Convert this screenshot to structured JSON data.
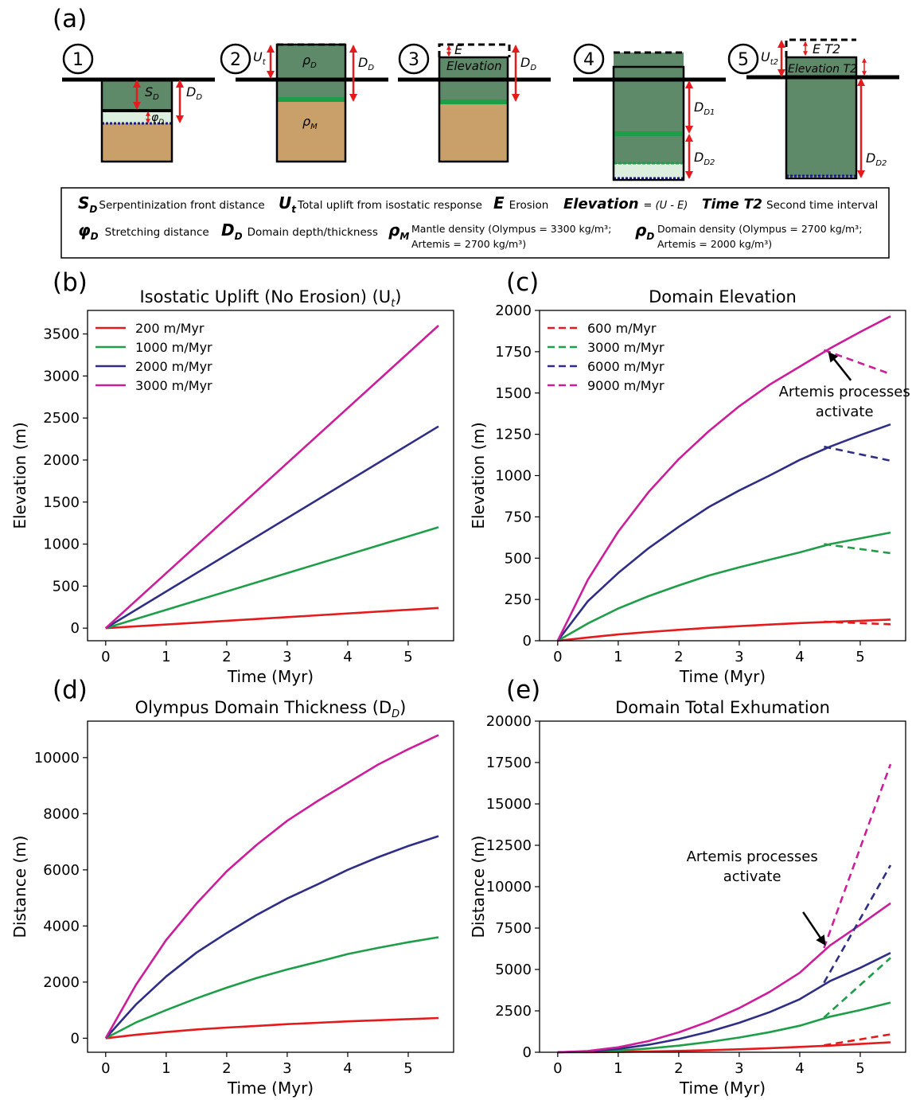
{
  "figure": {
    "panel_labels": [
      "(a)",
      "(b)",
      "(c)",
      "(d)",
      "(e)"
    ],
    "schematic": {
      "steps": [
        "1",
        "2",
        "3",
        "4",
        "5"
      ],
      "labels": {
        "sd": "S",
        "sd_sub": "D",
        "dd": "D",
        "dd_sub": "D",
        "phi": "φ",
        "phi_sub": "D",
        "ut": "U",
        "ut_sub": "t",
        "rho_d": "ρ",
        "rho_d_sub": "D",
        "rho_m": "ρ",
        "rho_m_sub": "M",
        "e": "E",
        "elevation": "Elevation",
        "dd1": "D",
        "dd1_sub": "D1",
        "dd2": "D",
        "dd2_sub": "D2",
        "ut2": "U",
        "ut2_sub": "t2",
        "et2": "E T2",
        "elevation_t2": "Elevation T2"
      },
      "legend_rows": [
        [
          {
            "sym": "S",
            "sub": "D",
            "text": "Serpentinization front distance"
          },
          {
            "sym": "U",
            "sub": "t",
            "text": "Total uplift from isostatic response"
          },
          {
            "sym": "E",
            "sub": "",
            "text": "Erosion"
          },
          {
            "sym": "Elevation",
            "sub": "",
            "text": "= (U - E)"
          },
          {
            "sym": "Time T2",
            "sub": "",
            "text": "Second time interval"
          }
        ],
        [
          {
            "sym": "φ",
            "sub": "D",
            "text": "Stretching distance"
          },
          {
            "sym": "D",
            "sub": "D",
            "text": "Domain depth/thickness"
          },
          {
            "sym": "ρ",
            "sub": "M",
            "text": "Mantle density (Olympus = 3300 kg/m³;",
            "text2": "Artemis = 2700 kg/m³)"
          },
          {
            "sym": "ρ",
            "sub": "D",
            "text": "Domain density (Olympus = 2700 kg/m³;",
            "text2": "Artemis = 2000 kg/m³)"
          }
        ]
      ]
    }
  },
  "colors": {
    "red": "#e41a1c",
    "green": "#1e9e48",
    "navy": "#2e2e86",
    "magenta": "#cc1e9b",
    "domain": "#5f8a6a",
    "mantle": "#c9a06a",
    "stretch": "#dcefdf"
  },
  "chart_data": [
    {
      "panel": "(b)",
      "type": "line",
      "title": "Isostatic Uplift (No Erosion) (U",
      "title_sub": "t",
      "title_end": ")",
      "xlabel": "Time (Myr)",
      "ylabel": "Elevation (m)",
      "xlim": [
        -0.3,
        5.75
      ],
      "ylim": [
        -150,
        3780
      ],
      "xticks": [
        0,
        1,
        2,
        3,
        4,
        5
      ],
      "yticks": [
        0,
        500,
        1000,
        1500,
        2000,
        2500,
        3000,
        3500
      ],
      "legend": "top-left",
      "series": [
        {
          "name": "200 m/Myr",
          "color": "#e41a1c",
          "dash": false,
          "x": [
            0,
            5.5
          ],
          "y": [
            0,
            240
          ]
        },
        {
          "name": "1000 m/Myr",
          "color": "#1e9e48",
          "dash": false,
          "x": [
            0,
            5.5
          ],
          "y": [
            0,
            1200
          ]
        },
        {
          "name": "2000 m/Myr",
          "color": "#2e2e86",
          "dash": false,
          "x": [
            0,
            5.5
          ],
          "y": [
            0,
            2400
          ]
        },
        {
          "name": "3000 m/Myr",
          "color": "#cc1e9b",
          "dash": false,
          "x": [
            0,
            5.5
          ],
          "y": [
            0,
            3600
          ]
        }
      ]
    },
    {
      "panel": "(c)",
      "type": "line",
      "title": "Domain Elevation",
      "xlabel": "Time (Myr)",
      "ylabel": "Elevation (m)",
      "xlim": [
        -0.3,
        5.75
      ],
      "ylim": [
        0,
        2000
      ],
      "xticks": [
        0,
        1,
        2,
        3,
        4,
        5
      ],
      "yticks": [
        0,
        250,
        500,
        750,
        1000,
        1250,
        1500,
        1750,
        2000
      ],
      "legend": "top-left",
      "annotation": {
        "text": [
          "Artemis processes",
          "activate"
        ],
        "x": 4.45,
        "y": 1760
      },
      "series": [
        {
          "name": "",
          "color": "#e41a1c",
          "dash": false,
          "x": [
            0,
            0.5,
            1,
            1.5,
            2,
            2.5,
            3,
            3.5,
            4,
            4.5,
            5,
            5.5
          ],
          "y": [
            0,
            20,
            38,
            53,
            66,
            78,
            88,
            98,
            107,
            114,
            121,
            128
          ]
        },
        {
          "name": "",
          "color": "#1e9e48",
          "dash": false,
          "x": [
            0,
            0.5,
            1,
            1.5,
            2,
            2.5,
            3,
            3.5,
            4,
            4.5,
            5,
            5.5
          ],
          "y": [
            0,
            105,
            195,
            270,
            335,
            395,
            445,
            490,
            535,
            585,
            620,
            655
          ]
        },
        {
          "name": "",
          "color": "#2e2e86",
          "dash": false,
          "x": [
            0,
            0.5,
            1,
            1.5,
            2,
            2.5,
            3,
            3.5,
            4,
            4.5,
            5,
            5.5
          ],
          "y": [
            0,
            240,
            410,
            560,
            690,
            810,
            910,
            1000,
            1095,
            1175,
            1245,
            1310
          ]
        },
        {
          "name": "",
          "color": "#cc1e9b",
          "dash": false,
          "x": [
            0,
            0.5,
            1,
            1.5,
            2,
            2.5,
            3,
            3.5,
            4,
            4.5,
            5,
            5.5
          ],
          "y": [
            0,
            370,
            660,
            900,
            1100,
            1270,
            1420,
            1550,
            1660,
            1770,
            1870,
            1965
          ]
        },
        {
          "name": "600 m/Myr",
          "color": "#e41a1c",
          "dash": true,
          "x": [
            4.4,
            5.5
          ],
          "y": [
            115,
            100
          ]
        },
        {
          "name": "3000 m/Myr",
          "color": "#1e9e48",
          "dash": true,
          "x": [
            4.4,
            5.5
          ],
          "y": [
            585,
            530
          ]
        },
        {
          "name": "6000 m/Myr",
          "color": "#2e2e86",
          "dash": true,
          "x": [
            4.4,
            5.5
          ],
          "y": [
            1175,
            1090
          ]
        },
        {
          "name": "9000 m/Myr",
          "color": "#cc1e9b",
          "dash": true,
          "x": [
            4.4,
            5.5
          ],
          "y": [
            1760,
            1615
          ]
        }
      ]
    },
    {
      "panel": "(d)",
      "type": "line",
      "title": "Olympus Domain Thickness (D",
      "title_sub": "D",
      "title_end": ")",
      "xlabel": "Time (Myr)",
      "ylabel": "Distance (m)",
      "xlim": [
        -0.3,
        5.75
      ],
      "ylim": [
        -500,
        11300
      ],
      "xticks": [
        0,
        1,
        2,
        3,
        4,
        5
      ],
      "yticks": [
        0,
        2000,
        4000,
        6000,
        8000,
        10000
      ],
      "series": [
        {
          "name": "",
          "color": "#e41a1c",
          "dash": false,
          "x": [
            0,
            0.5,
            1,
            1.5,
            2,
            2.5,
            3,
            3.5,
            4,
            4.5,
            5,
            5.5
          ],
          "y": [
            0,
            120,
            220,
            310,
            380,
            440,
            500,
            550,
            600,
            640,
            680,
            720
          ]
        },
        {
          "name": "",
          "color": "#1e9e48",
          "dash": false,
          "x": [
            0,
            0.5,
            1,
            1.5,
            2,
            2.5,
            3,
            3.5,
            4,
            4.5,
            5,
            5.5
          ],
          "y": [
            0,
            560,
            1000,
            1420,
            1800,
            2150,
            2450,
            2720,
            3000,
            3220,
            3420,
            3600
          ]
        },
        {
          "name": "",
          "color": "#2e2e86",
          "dash": false,
          "x": [
            0,
            0.5,
            1,
            1.5,
            2,
            2.5,
            3,
            3.5,
            4,
            4.5,
            5,
            5.5
          ],
          "y": [
            0,
            1200,
            2200,
            3050,
            3750,
            4400,
            4980,
            5480,
            6000,
            6450,
            6850,
            7200
          ]
        },
        {
          "name": "",
          "color": "#cc1e9b",
          "dash": false,
          "x": [
            0,
            0.5,
            1,
            1.5,
            2,
            2.5,
            3,
            3.5,
            4,
            4.5,
            5,
            5.5
          ],
          "y": [
            0,
            1900,
            3500,
            4800,
            5950,
            6900,
            7750,
            8450,
            9100,
            9750,
            10300,
            10800
          ]
        }
      ]
    },
    {
      "panel": "(e)",
      "type": "line",
      "title": "Domain Total Exhumation",
      "xlabel": "Time (Myr)",
      "ylabel": "Distance (m)",
      "xlim": [
        -0.3,
        5.75
      ],
      "ylim": [
        0,
        20000
      ],
      "xticks": [
        0,
        1,
        2,
        3,
        4,
        5
      ],
      "yticks": [
        0,
        2500,
        5000,
        7500,
        10000,
        12500,
        15000,
        17500,
        20000
      ],
      "annotation": {
        "text": [
          "Artemis processes",
          "activate"
        ],
        "x": 4.45,
        "y": 6350
      },
      "series": [
        {
          "name": "",
          "color": "#e41a1c",
          "dash": false,
          "x": [
            0,
            0.5,
            1,
            1.5,
            2,
            2.5,
            3,
            3.5,
            4,
            4.5,
            5,
            5.5
          ],
          "y": [
            0,
            5,
            20,
            45,
            80,
            125,
            180,
            245,
            320,
            400,
            500,
            600
          ]
        },
        {
          "name": "",
          "color": "#1e9e48",
          "dash": false,
          "x": [
            0,
            0.5,
            1,
            1.5,
            2,
            2.5,
            3,
            3.5,
            4,
            4.5,
            5,
            5.5
          ],
          "y": [
            0,
            25,
            100,
            225,
            400,
            620,
            890,
            1210,
            1600,
            2150,
            2550,
            3000
          ]
        },
        {
          "name": "",
          "color": "#2e2e86",
          "dash": false,
          "x": [
            0,
            0.5,
            1,
            1.5,
            2,
            2.5,
            3,
            3.5,
            4,
            4.5,
            5,
            5.5
          ],
          "y": [
            0,
            50,
            200,
            450,
            800,
            1240,
            1780,
            2420,
            3200,
            4300,
            5100,
            6000
          ]
        },
        {
          "name": "",
          "color": "#cc1e9b",
          "dash": false,
          "x": [
            0,
            0.5,
            1,
            1.5,
            2,
            2.5,
            3,
            3.5,
            4,
            4.5,
            5,
            5.5
          ],
          "y": [
            0,
            75,
            300,
            675,
            1200,
            1860,
            2670,
            3640,
            4800,
            6450,
            7700,
            9000
          ]
        },
        {
          "name": "",
          "color": "#e41a1c",
          "dash": true,
          "x": [
            4.4,
            5.5
          ],
          "y": [
            420,
            1080
          ]
        },
        {
          "name": "",
          "color": "#1e9e48",
          "dash": true,
          "x": [
            4.4,
            5.5
          ],
          "y": [
            2100,
            5700
          ]
        },
        {
          "name": "",
          "color": "#2e2e86",
          "dash": true,
          "x": [
            4.4,
            5.5
          ],
          "y": [
            4200,
            11300
          ]
        },
        {
          "name": "",
          "color": "#cc1e9b",
          "dash": true,
          "x": [
            4.4,
            5.5
          ],
          "y": [
            6300,
            17400
          ]
        }
      ]
    }
  ]
}
